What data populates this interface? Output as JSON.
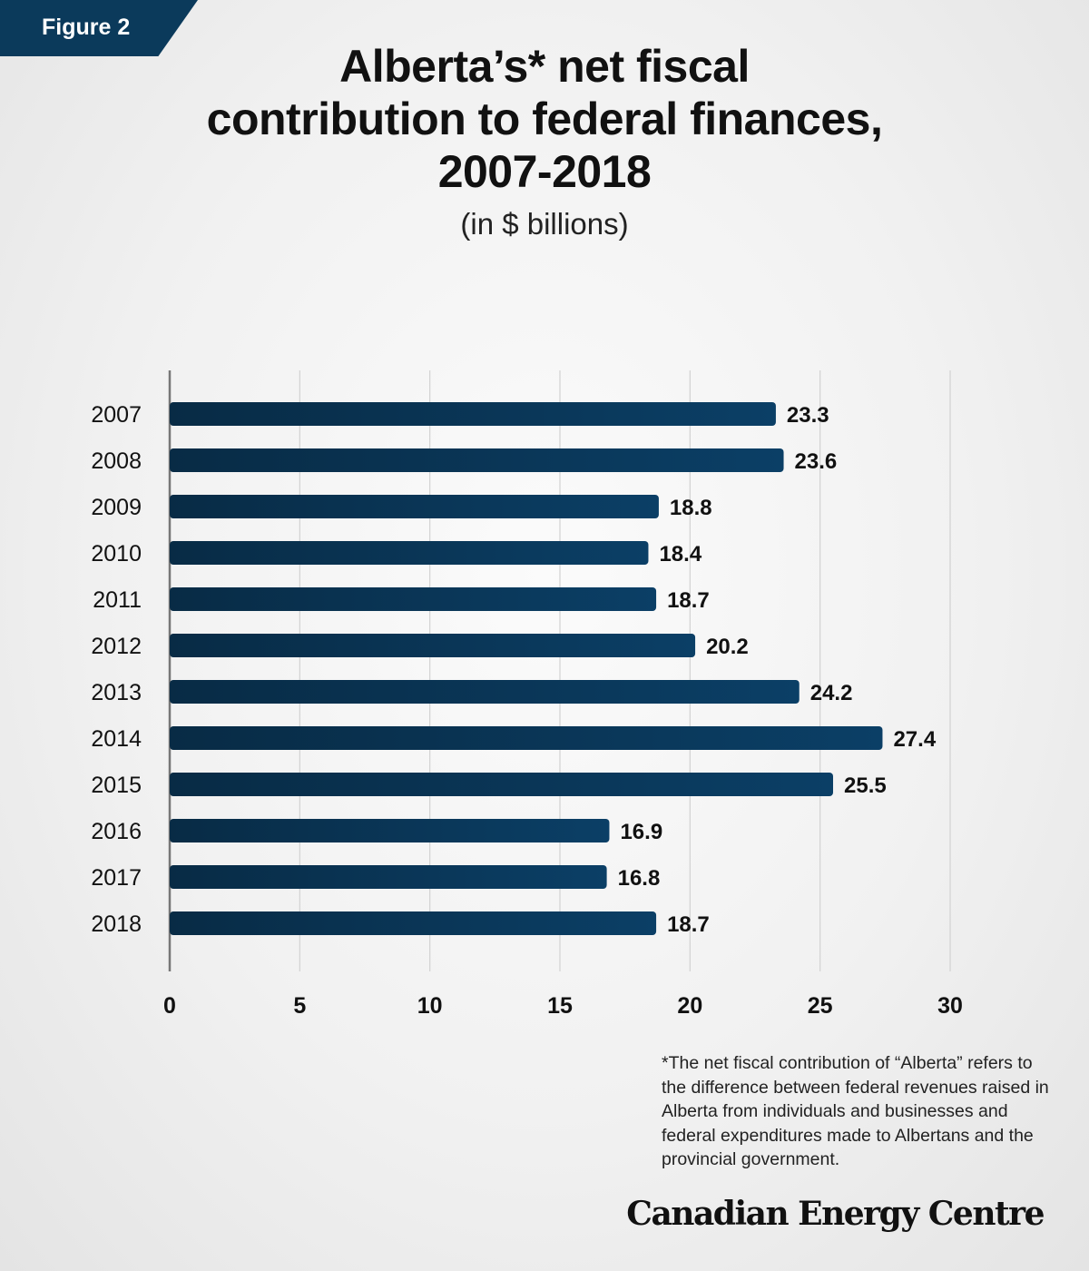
{
  "figure_label": "Figure 2",
  "chart_data": {
    "type": "bar",
    "orientation": "horizontal",
    "title": "Alberta’s* net fiscal contribution to federal finances, 2007-2018",
    "subtitle": "(in $ billions)",
    "categories": [
      "2007",
      "2008",
      "2009",
      "2010",
      "2011",
      "2012",
      "2013",
      "2014",
      "2015",
      "2016",
      "2017",
      "2018"
    ],
    "values": [
      23.3,
      23.6,
      18.8,
      18.4,
      18.7,
      20.2,
      24.2,
      27.4,
      25.5,
      16.9,
      16.8,
      18.7
    ],
    "value_labels": [
      "23.3",
      "23.6",
      "18.8",
      "18.4",
      "18.7",
      "20.2",
      "24.2",
      "27.4",
      "25.5",
      "16.9",
      "16.8",
      "18.7"
    ],
    "xlim": [
      0,
      30
    ],
    "x_ticks": [
      0,
      5,
      10,
      15,
      20,
      25,
      30
    ],
    "grid": "vertical",
    "bar_color": "#0b3f66",
    "bar_color_dark": "#082b45"
  },
  "footnote": "*The net fiscal contribution of “Alberta” refers to the difference between federal revenues raised in Alberta from individuals and businesses and federal expenditures made to Albertans and the provincial government.",
  "brand": "Canadian Energy Centre"
}
